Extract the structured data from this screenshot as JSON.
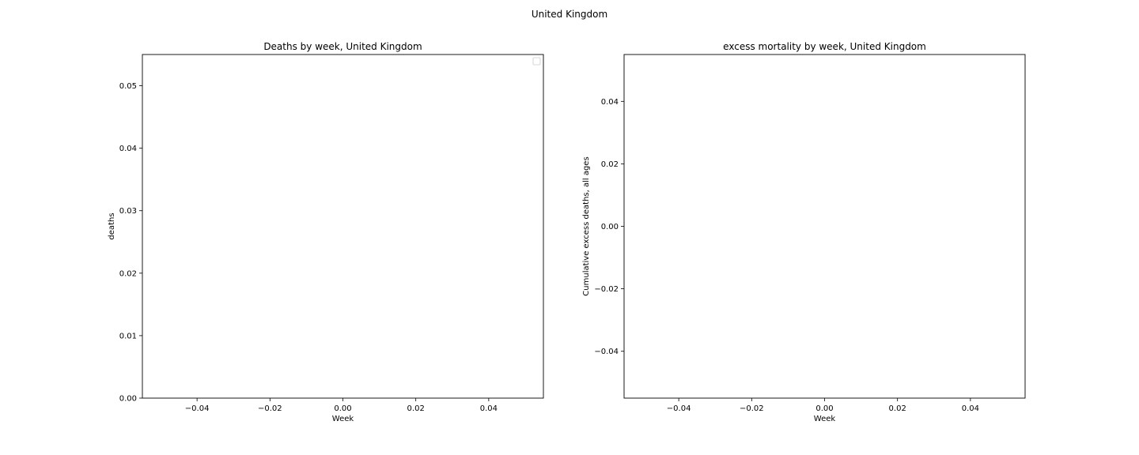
{
  "figure": {
    "suptitle": "United Kingdom",
    "background": "#ffffff"
  },
  "chart_data": [
    {
      "type": "line",
      "title": "Deaths by week, United Kingdom",
      "xlabel": "Week",
      "ylabel": "deaths",
      "xlim": [
        -0.055,
        0.055
      ],
      "ylim": [
        0,
        0.055
      ],
      "xticks": [
        -0.04,
        -0.02,
        0.0,
        0.02,
        0.04
      ],
      "xtick_labels": [
        "−0.04",
        "−0.02",
        "0.00",
        "0.02",
        "0.04"
      ],
      "yticks": [
        0.0,
        0.01,
        0.02,
        0.03,
        0.04,
        0.05
      ],
      "ytick_labels": [
        "0.00",
        "0.01",
        "0.02",
        "0.03",
        "0.04",
        "0.05"
      ],
      "series": [],
      "legend": "top-right",
      "grid": false
    },
    {
      "type": "line",
      "title": "excess mortality by week, United Kingdom",
      "xlabel": "Week",
      "ylabel": "Cumulative excess deaths, all ages",
      "xlim": [
        -0.055,
        0.055
      ],
      "ylim": [
        -0.055,
        0.055
      ],
      "xticks": [
        -0.04,
        -0.02,
        0.0,
        0.02,
        0.04
      ],
      "xtick_labels": [
        "−0.04",
        "−0.02",
        "0.00",
        "0.02",
        "0.04"
      ],
      "yticks": [
        -0.04,
        -0.02,
        0.0,
        0.02,
        0.04
      ],
      "ytick_labels": [
        "−0.04",
        "−0.02",
        "0.00",
        "0.02",
        "0.04"
      ],
      "series": [],
      "legend": "none",
      "grid": false
    }
  ]
}
